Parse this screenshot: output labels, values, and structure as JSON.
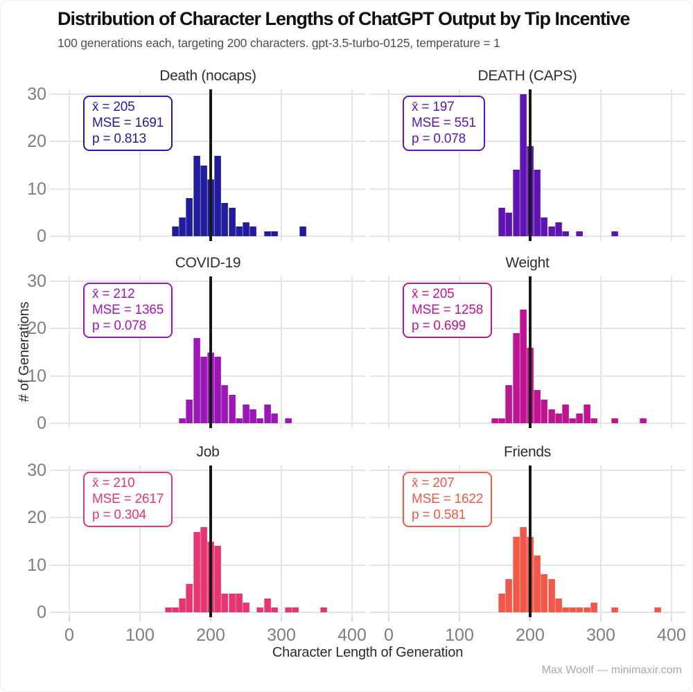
{
  "header": {
    "title": "Distribution of Character Lengths of ChatGPT Output by Tip Incentive",
    "subtitle": "100 generations each, targeting 200 characters. gpt-3.5-turbo-0125, temperature = 1"
  },
  "axes": {
    "x_label": "Character Length of Generation",
    "y_label": "# of Generations",
    "x_ticks": [
      0,
      100,
      200,
      300,
      400
    ],
    "y_ticks": [
      0,
      10,
      20,
      30
    ]
  },
  "footer": {
    "credit": "Max Woolf — minimaxir.com"
  },
  "style": {
    "gridline_color": "#e4e4e4",
    "target_line_color": "#181818",
    "tick_label_color": "#7e7e7e"
  },
  "chart_data": {
    "type": "bar",
    "layout": "2x3 small multiples, shared axes",
    "xlabel": "Character Length of Generation",
    "ylabel": "# of Generations",
    "xlim": [
      0,
      400
    ],
    "ylim": [
      0,
      30
    ],
    "bin_width": 10,
    "target_vline_x": 200,
    "subplots": [
      {
        "title": "Death (nocaps)",
        "color": "#201c9d",
        "stats": {
          "mean": 205,
          "mse": 1691,
          "p": 0.813
        },
        "stat_lines": [
          "x̄ = 205",
          "MSE = 1691",
          "p = 0.813"
        ],
        "bins": [
          [
            145,
            2
          ],
          [
            155,
            4
          ],
          [
            165,
            8
          ],
          [
            175,
            17
          ],
          [
            185,
            15
          ],
          [
            195,
            12
          ],
          [
            205,
            17
          ],
          [
            215,
            7
          ],
          [
            225,
            6
          ],
          [
            235,
            2
          ],
          [
            245,
            3
          ],
          [
            255,
            2
          ],
          [
            275,
            1
          ],
          [
            285,
            1
          ],
          [
            325,
            2
          ]
        ]
      },
      {
        "title": "DEATH (CAPS)",
        "color": "#5f13b2",
        "stats": {
          "mean": 197,
          "mse": 551,
          "p": 0.078
        },
        "stat_lines": [
          "x̄ = 197",
          "MSE = 551",
          "p = 0.078"
        ],
        "bins": [
          [
            155,
            6
          ],
          [
            165,
            5
          ],
          [
            175,
            14
          ],
          [
            185,
            30
          ],
          [
            195,
            19
          ],
          [
            205,
            14
          ],
          [
            215,
            4
          ],
          [
            225,
            2
          ],
          [
            235,
            3
          ],
          [
            245,
            1
          ],
          [
            265,
            1
          ],
          [
            315,
            1
          ]
        ]
      },
      {
        "title": "COVID-19",
        "color": "#9c17b8",
        "stats": {
          "mean": 212,
          "mse": 1365,
          "p": 0.078
        },
        "stat_lines": [
          "x̄ = 212",
          "MSE = 1365",
          "p = 0.078"
        ],
        "bins": [
          [
            155,
            1
          ],
          [
            165,
            5
          ],
          [
            175,
            18
          ],
          [
            185,
            14
          ],
          [
            195,
            15
          ],
          [
            205,
            14
          ],
          [
            215,
            8
          ],
          [
            225,
            6
          ],
          [
            235,
            1
          ],
          [
            245,
            4
          ],
          [
            255,
            3
          ],
          [
            265,
            1
          ],
          [
            275,
            4
          ],
          [
            285,
            2
          ],
          [
            305,
            1
          ]
        ]
      },
      {
        "title": "Weight",
        "color": "#bf1391",
        "stats": {
          "mean": 205,
          "mse": 1258,
          "p": 0.699
        },
        "stat_lines": [
          "x̄ = 205",
          "MSE = 1258",
          "p = 0.699"
        ],
        "bins": [
          [
            145,
            1
          ],
          [
            155,
            1
          ],
          [
            165,
            8
          ],
          [
            175,
            19
          ],
          [
            185,
            24
          ],
          [
            195,
            16
          ],
          [
            205,
            7
          ],
          [
            215,
            5
          ],
          [
            225,
            3
          ],
          [
            235,
            2
          ],
          [
            245,
            4
          ],
          [
            255,
            1
          ],
          [
            265,
            2
          ],
          [
            275,
            4
          ],
          [
            285,
            1
          ],
          [
            315,
            1
          ],
          [
            355,
            1
          ]
        ]
      },
      {
        "title": "Job",
        "color": "#e7356f",
        "stats": {
          "mean": 210,
          "mse": 2617,
          "p": 0.304
        },
        "stat_lines": [
          "x̄ = 210",
          "MSE = 2617",
          "p = 0.304"
        ],
        "bins": [
          [
            135,
            1
          ],
          [
            145,
            1
          ],
          [
            155,
            3
          ],
          [
            165,
            6
          ],
          [
            175,
            17
          ],
          [
            185,
            18
          ],
          [
            195,
            15
          ],
          [
            205,
            14
          ],
          [
            215,
            4
          ],
          [
            225,
            4
          ],
          [
            235,
            4
          ],
          [
            245,
            2
          ],
          [
            265,
            1
          ],
          [
            275,
            3
          ],
          [
            285,
            1
          ],
          [
            305,
            1
          ],
          [
            315,
            1
          ],
          [
            355,
            1
          ]
        ]
      },
      {
        "title": "Friends",
        "color": "#f25747",
        "stats": {
          "mean": 207,
          "mse": 1622,
          "p": 0.581
        },
        "stat_lines": [
          "x̄ = 207",
          "MSE = 1622",
          "p = 0.581"
        ],
        "bins": [
          [
            155,
            4
          ],
          [
            165,
            7
          ],
          [
            175,
            16
          ],
          [
            185,
            18
          ],
          [
            195,
            16
          ],
          [
            205,
            12
          ],
          [
            215,
            8
          ],
          [
            225,
            7
          ],
          [
            235,
            3
          ],
          [
            245,
            1
          ],
          [
            255,
            1
          ],
          [
            265,
            1
          ],
          [
            275,
            1
          ],
          [
            285,
            2
          ],
          [
            315,
            1
          ],
          [
            375,
            1
          ]
        ]
      }
    ]
  }
}
